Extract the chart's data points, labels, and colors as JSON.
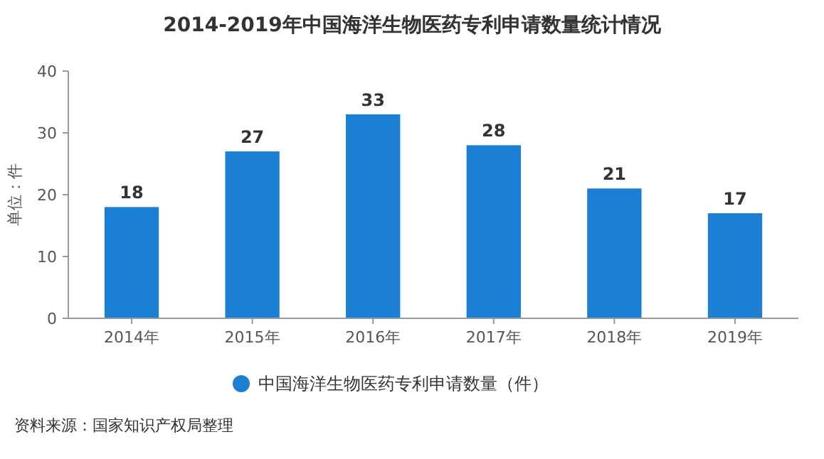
{
  "chart_data": {
    "type": "bar",
    "title": "2014-2019年中国海洋生物医药专利申请数量统计情况",
    "ylabel": "单位：件",
    "categories": [
      "2014年",
      "2015年",
      "2016年",
      "2017年",
      "2018年",
      "2019年"
    ],
    "series": [
      {
        "name": "中国海洋生物医药专利申请数量（件）",
        "color": "#1b7fd3",
        "values": [
          18,
          27,
          33,
          28,
          21,
          17
        ]
      }
    ],
    "ylim": [
      0,
      40
    ],
    "yticks": [
      0,
      10,
      20,
      30,
      40
    ],
    "data_labels": true,
    "legend": "bottom",
    "annotations": [
      "资料来源：国家知识产权局整理"
    ]
  }
}
